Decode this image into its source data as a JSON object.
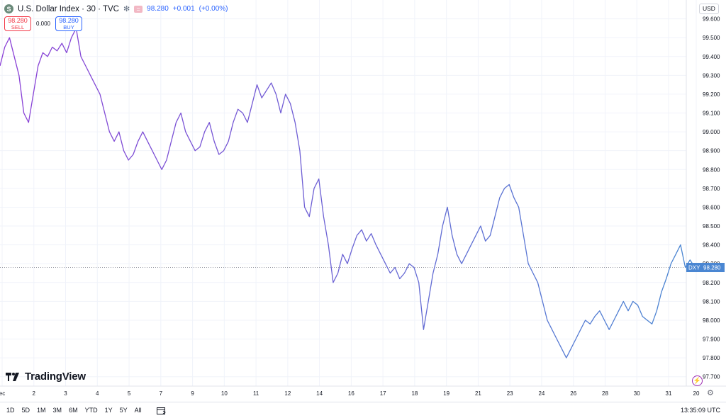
{
  "header": {
    "symbol_icon": "S",
    "title": "U.S. Dollar Index · 30 · TVC",
    "market_icon": "snowflake-icon",
    "menu_icon": "equals-icon",
    "last_price": "98.280",
    "change": "+0.001",
    "change_pct": "(+0.00%)"
  },
  "trade": {
    "sell_price": "98.280",
    "sell_label": "SELL",
    "spread": "0.000",
    "buy_price": "98.280",
    "buy_label": "BUY"
  },
  "currency": "USD",
  "branding": {
    "logo_text": "TradingView",
    "logo_icon": "tradingview-icon"
  },
  "price_label": {
    "ticker": "DXY",
    "value": "98.280"
  },
  "bottom": {
    "ranges": [
      "1D",
      "5D",
      "1M",
      "3M",
      "6M",
      "YTD",
      "1Y",
      "5Y",
      "All"
    ],
    "time": "13:35:09 UTC",
    "calendar_icon": "calendar-icon",
    "lightning_icon": "lightning-icon",
    "settings_icon": "gear-icon"
  },
  "colors": {
    "line_start": "#8b3fd6",
    "line_end": "#4a86d2",
    "accent": "#2962ff",
    "sell": "#f23645",
    "grid": "#f0f3fa"
  },
  "chart_data": {
    "type": "line",
    "ylim": [
      97.65,
      99.7
    ],
    "grid": true,
    "y_ticks": [
      "99.600",
      "99.500",
      "99.400",
      "99.300",
      "99.200",
      "99.100",
      "99.000",
      "98.900",
      "98.800",
      "98.700",
      "98.600",
      "98.500",
      "98.400",
      "98.300",
      "98.200",
      "98.100",
      "98.000",
      "97.900",
      "97.800",
      "97.700"
    ],
    "x_ticks": [
      "ec",
      "2",
      "3",
      "4",
      "5",
      "7",
      "9",
      "10",
      "11",
      "12",
      "14",
      "16",
      "17",
      "18",
      "19",
      "21",
      "23",
      "24",
      "26",
      "28",
      "30",
      "31",
      "20"
    ],
    "last_value": 98.28,
    "series": [
      {
        "values": [
          99.35,
          99.45,
          99.5,
          99.4,
          99.3,
          99.1,
          99.05,
          99.2,
          99.35,
          99.42,
          99.4,
          99.45,
          99.43,
          99.47,
          99.42,
          99.5,
          99.55,
          99.4,
          99.35,
          99.3,
          99.25,
          99.2,
          99.1,
          99.0,
          98.95,
          99.0,
          98.9,
          98.85,
          98.88,
          98.95,
          99.0,
          98.95,
          98.9,
          98.85,
          98.8,
          98.85,
          98.95,
          99.05,
          99.1,
          99.0,
          98.95,
          98.9,
          98.92,
          99.0,
          99.05,
          98.95,
          98.88,
          98.9,
          98.95,
          99.05,
          99.12,
          99.1,
          99.05,
          99.15,
          99.25,
          99.18,
          99.22,
          99.26,
          99.2,
          99.1,
          99.2,
          99.15,
          99.05,
          98.9,
          98.6,
          98.55,
          98.7,
          98.75,
          98.55,
          98.4,
          98.2,
          98.25,
          98.35,
          98.3,
          98.38,
          98.45,
          98.48,
          98.42,
          98.46,
          98.4,
          98.35,
          98.3,
          98.25,
          98.28,
          98.22,
          98.25,
          98.3,
          98.28,
          98.2,
          97.95,
          98.1,
          98.25,
          98.35,
          98.5,
          98.6,
          98.45,
          98.35,
          98.3,
          98.35,
          98.4,
          98.45,
          98.5,
          98.42,
          98.45,
          98.55,
          98.65,
          98.7,
          98.72,
          98.65,
          98.6,
          98.45,
          98.3,
          98.25,
          98.2,
          98.1,
          98.0,
          97.95,
          97.9,
          97.85,
          97.8,
          97.85,
          97.9,
          97.95,
          98.0,
          97.98,
          98.02,
          98.05,
          98.0,
          97.95,
          98.0,
          98.05,
          98.1,
          98.05,
          98.1,
          98.08,
          98.02,
          98.0,
          97.98,
          98.05,
          98.15,
          98.22,
          98.3,
          98.35,
          98.4,
          98.28,
          98.32,
          98.28
        ]
      }
    ]
  }
}
